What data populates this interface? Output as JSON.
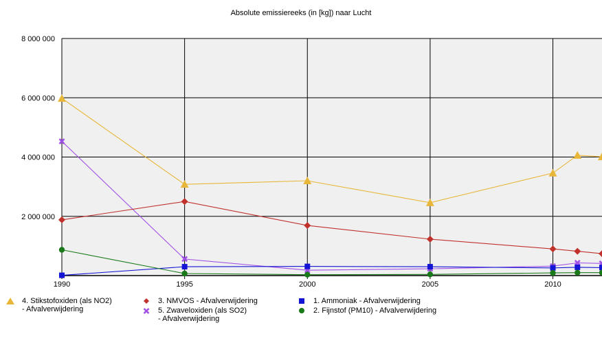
{
  "chart_data": {
    "type": "line",
    "title": "Absolute emissiereeks (in [kg]) naar Lucht",
    "xlabel": "",
    "ylabel": "",
    "xlim": [
      1990,
      2012
    ],
    "ylim": [
      0,
      8000000
    ],
    "x_ticks": [
      1990,
      1995,
      2000,
      2005,
      2010
    ],
    "y_ticks": [
      2000000,
      4000000,
      6000000,
      8000000
    ],
    "y_tick_labels": [
      "2 000 000",
      "4 000 000",
      "6 000 000",
      "8 000 000"
    ],
    "grid": true,
    "legend_position": "bottom",
    "series": [
      {
        "name": "4. Stikstofoxiden (als NO2) - Afvalverwijdering",
        "legend_lines": "4. Stikstofoxiden (als NO2)\n- Afvalverwijdering",
        "color": "#e8b73a",
        "marker": "triangle",
        "x": [
          1990,
          1995,
          2000,
          2005,
          2010,
          2011,
          2012
        ],
        "y": [
          5980000,
          3080000,
          3200000,
          2460000,
          3460000,
          4060000,
          4010000
        ]
      },
      {
        "name": "5. Zwaveloxiden (als SO2) - Afvalverwijdering",
        "legend_lines": "5. Zwaveloxiden (als SO2)\n- Afvalverwijdering",
        "color": "#a050e6",
        "marker": "x",
        "x": [
          1990,
          1995,
          2000,
          2005,
          2010,
          2011,
          2012
        ],
        "y": [
          4530000,
          560000,
          180000,
          230000,
          320000,
          430000,
          410000
        ]
      },
      {
        "name": "3. NMVOS - Afvalverwijdering",
        "legend_lines": "3. NMVOS - Afvalverwijdering",
        "color": "#c0312b",
        "marker": "diamond",
        "x": [
          1990,
          1995,
          2000,
          2005,
          2010,
          2011,
          2012
        ],
        "y": [
          1880000,
          2500000,
          1690000,
          1230000,
          900000,
          820000,
          740000
        ]
      },
      {
        "name": "1. Ammoniak - Afvalverwijdering",
        "legend_lines": "1. Ammoniak - Afvalverwijdering",
        "color": "#1414d4",
        "marker": "square",
        "x": [
          1990,
          1995,
          2000,
          2005,
          2010,
          2011,
          2012
        ],
        "y": [
          10000,
          300000,
          310000,
          300000,
          260000,
          280000,
          270000
        ]
      },
      {
        "name": "2. Fijnstof (PM10) - Afvalverwijdering",
        "legend_lines": "2. Fijnstof (PM10) - Afvalverwijdering",
        "color": "#1a7a1a",
        "marker": "circle",
        "x": [
          1990,
          1995,
          2000,
          2005,
          2010,
          2011,
          2012
        ],
        "y": [
          870000,
          70000,
          30000,
          40000,
          90000,
          100000,
          100000
        ]
      }
    ]
  }
}
